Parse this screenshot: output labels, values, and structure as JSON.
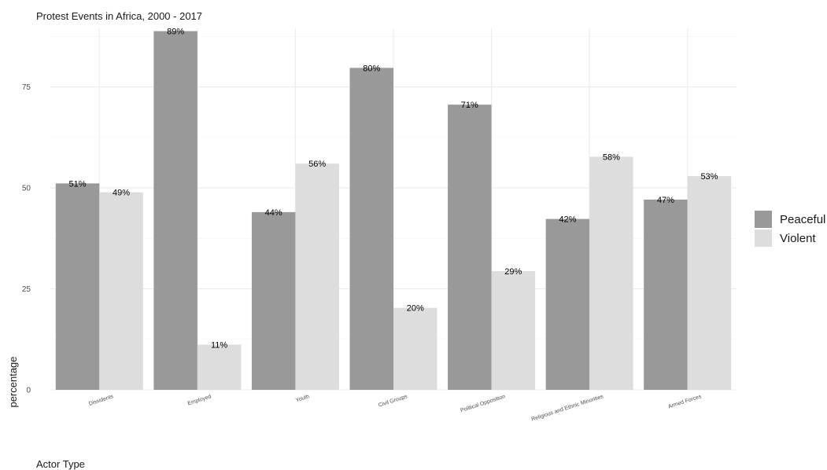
{
  "chart_data": {
    "type": "bar",
    "title": "Protest Events in Africa, 2000 - 2017",
    "xlabel": "Actor Type",
    "ylabel": "percentage",
    "ylim": [
      0,
      89.5
    ],
    "yticks": [
      0,
      25,
      50,
      75
    ],
    "grid": true,
    "legend_position": "right",
    "categories": [
      "Dissidents",
      "Employed",
      "Youth",
      "Civil Groups",
      "Political Opposition",
      "Religious and Ethnic Minorities",
      "Armed Forces"
    ],
    "series": [
      {
        "name": "Peaceful",
        "color": "#999999",
        "values": [
          51.1,
          88.8,
          44.0,
          79.7,
          70.6,
          42.3,
          47.1
        ],
        "labels": [
          "51%",
          "89%",
          "44%",
          "80%",
          "71%",
          "42%",
          "47%"
        ]
      },
      {
        "name": "Violent",
        "color": "#dddddd",
        "values": [
          48.9,
          11.2,
          56.0,
          20.3,
          29.4,
          57.7,
          52.9
        ],
        "labels": [
          "49%",
          "11%",
          "56%",
          "20%",
          "29%",
          "58%",
          "53%"
        ]
      }
    ]
  }
}
